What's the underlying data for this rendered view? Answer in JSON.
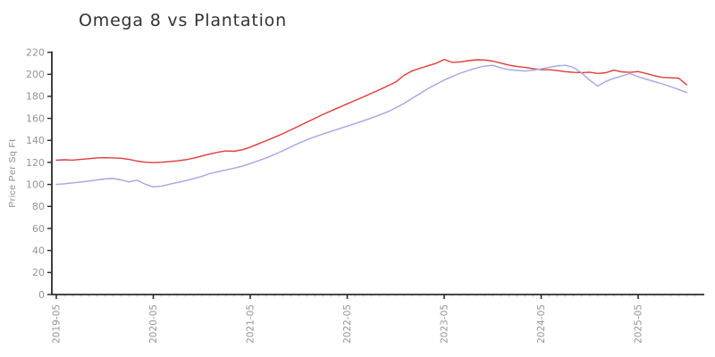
{
  "page": {
    "background": "#ffffff"
  },
  "chart": {
    "title": "Omega 8 vs Plantation",
    "y_axis_label": "Price Per Sq Ft",
    "tick_label_color": "#949494",
    "axis_color": "#2b2b2b",
    "minor_tick_color": "#c2c2c2"
  },
  "chart_data": {
    "type": "line",
    "title": "Omega 8 vs Plantation",
    "xlabel": "",
    "ylabel": "Price Per Sq Ft",
    "ylim": [
      0,
      220
    ],
    "y_ticks": [
      0,
      20,
      40,
      60,
      80,
      100,
      120,
      140,
      160,
      180,
      200,
      220
    ],
    "x_major_tick_labels": [
      "2019-05",
      "2020-05",
      "2021-05",
      "2022-05",
      "2023-05",
      "2024-05",
      "2025-05"
    ],
    "grid": false,
    "legend_position": "none",
    "x": [
      "2019-05",
      "2019-06",
      "2019-07",
      "2019-08",
      "2019-09",
      "2019-10",
      "2019-11",
      "2019-12",
      "2020-01",
      "2020-02",
      "2020-03",
      "2020-04",
      "2020-05",
      "2020-06",
      "2020-07",
      "2020-08",
      "2020-09",
      "2020-10",
      "2020-11",
      "2020-12",
      "2021-01",
      "2021-02",
      "2021-03",
      "2021-04",
      "2021-05",
      "2021-06",
      "2021-07",
      "2021-08",
      "2021-09",
      "2021-10",
      "2021-11",
      "2021-12",
      "2022-01",
      "2022-02",
      "2022-03",
      "2022-04",
      "2022-05",
      "2022-06",
      "2022-07",
      "2022-08",
      "2022-09",
      "2022-10",
      "2022-11",
      "2022-12",
      "2023-01",
      "2023-02",
      "2023-03",
      "2023-04",
      "2023-05",
      "2023-06",
      "2023-07",
      "2023-08",
      "2023-09",
      "2023-10",
      "2023-11",
      "2023-12",
      "2024-01",
      "2024-02",
      "2024-03",
      "2024-04",
      "2024-05",
      "2024-06",
      "2024-07",
      "2024-08",
      "2024-09",
      "2024-10",
      "2024-11",
      "2024-12",
      "2025-01",
      "2025-02",
      "2025-03",
      "2025-04",
      "2025-05",
      "2025-06",
      "2025-07",
      "2025-08",
      "2025-09",
      "2025-10",
      "2025-11"
    ],
    "series": [
      {
        "name": "Omega 8",
        "color": "#e03a3a",
        "values": [
          122,
          122.4,
          122.1,
          122.7,
          123.4,
          124.1,
          124.3,
          124.1,
          123.8,
          122.7,
          121.2,
          120.2,
          119.8,
          120.1,
          120.7,
          121.4,
          122.4,
          123.9,
          125.8,
          127.6,
          129.2,
          130.4,
          130.1,
          131.5,
          133.8,
          136.8,
          139.8,
          142.8,
          146.0,
          149.5,
          153.0,
          156.5,
          160.0,
          163.5,
          166.8,
          170.0,
          173.2,
          176.3,
          179.5,
          182.8,
          186.0,
          189.5,
          193.0,
          199.0,
          203.0,
          205.5,
          207.8,
          210.0,
          213.5,
          210.8,
          211.3,
          212.4,
          213.2,
          213.0,
          212.0,
          210.2,
          208.4,
          207.2,
          206.2,
          205.2,
          204.3,
          204.2,
          203.4,
          202.4,
          201.8,
          201.5,
          201.9,
          200.8,
          201.4,
          203.8,
          202.2,
          201.8,
          202.5,
          200.8,
          198.8,
          197.2,
          196.8,
          196.6,
          190.5
        ]
      },
      {
        "name": "Plantation",
        "color": "#a5a5e2",
        "values": [
          100,
          100.6,
          101.4,
          102.2,
          103.0,
          104.0,
          105.0,
          105.4,
          104.2,
          102.3,
          103.8,
          100.2,
          97.8,
          98.4,
          100.2,
          101.8,
          103.4,
          105.2,
          107.3,
          109.8,
          111.5,
          113.2,
          114.8,
          116.6,
          119.0,
          121.5,
          124.2,
          127.2,
          130.5,
          134.0,
          137.5,
          140.5,
          143.2,
          145.8,
          148.2,
          150.5,
          153.0,
          155.3,
          157.8,
          160.3,
          163.0,
          166.0,
          169.5,
          173.5,
          178.0,
          182.5,
          187.0,
          191.0,
          194.8,
          198.0,
          201.0,
          203.5,
          205.8,
          207.5,
          208.2,
          205.8,
          204.3,
          203.6,
          203.0,
          203.8,
          204.9,
          206.4,
          207.7,
          208.2,
          206.3,
          201.3,
          194.7,
          189.3,
          193.6,
          196.4,
          198.6,
          200.6,
          197.9,
          195.5,
          193.4,
          191.3,
          188.9,
          186.3,
          183.4
        ]
      }
    ]
  }
}
